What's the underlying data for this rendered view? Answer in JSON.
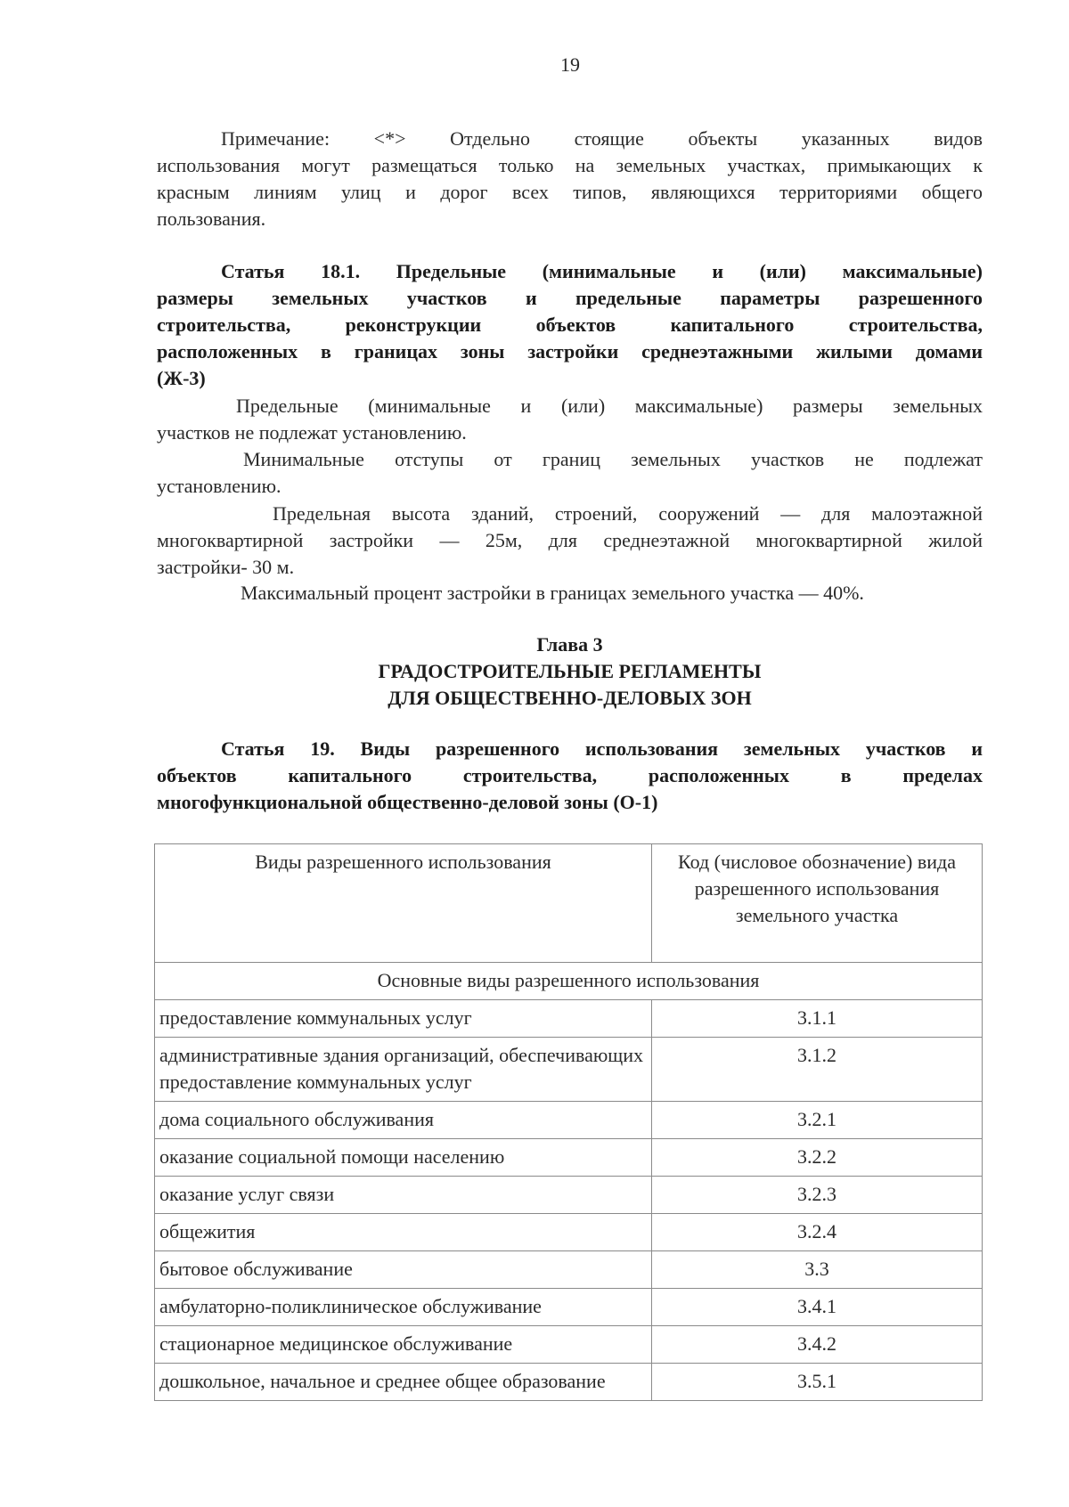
{
  "page_number": "19",
  "note": {
    "lines": [
      "Примечание: <*> Отдельно стоящие объекты указанных видов",
      "использования могут размещаться только на земельных участках, примыкающих к",
      "красным линиям улиц и дорог всех типов, являющихся территориями общего",
      "пользования."
    ]
  },
  "article_18_1": {
    "heading_lines": [
      "Статья 18.1. Предельные (минимальные и (или) максимальные)",
      "размеры земельных участков и предельные параметры разрешенного",
      "строительства, реконструкции объектов капитального строительства,",
      "расположенных в границах зоны застройки среднеэтажными жилыми домами",
      "(Ж-3)"
    ],
    "paragraphs": [
      [
        "Предельные (минимальные и (или) максимальные) размеры земельных",
        "участков не подлежат установлению."
      ],
      [
        "Минимальные отступы от границ земельных участков не подлежат",
        "установлению."
      ],
      [
        "Предельная высота зданий, строений, сооружений — для малоэтажной",
        "многоквартирной застройки — 25м, для среднеэтажной многоквартирной жилой",
        "застройки- 30 м."
      ],
      [
        "Максимальный процент застройки в границах земельного участка — 40%."
      ]
    ]
  },
  "chapter": {
    "number": "Глава 3",
    "title_lines": [
      "ГРАДОСТРОИТЕЛЬНЫЕ РЕГЛАМЕНТЫ",
      "ДЛЯ ОБЩЕСТВЕННО-ДЕЛОВЫХ ЗОН"
    ]
  },
  "article_19": {
    "heading_lines": [
      "Статья 19. Виды разрешенного использования земельных участков и",
      "объектов капитального строительства, расположенных в пределах",
      "многофункциональной общественно-деловой зоны (О-1)"
    ]
  },
  "table": {
    "headers": [
      "Виды разрешенного использования",
      "Код (числовое обозначение) вида разрешенного использования земельного участка"
    ],
    "section": "Основные виды разрешенного использования",
    "rows": [
      {
        "use": "предоставление коммунальных услуг",
        "code": "3.1.1"
      },
      {
        "use": "административные здания организаций, обеспечивающих предоставление коммунальных услуг",
        "code": "3.1.2"
      },
      {
        "use": "дома социального обслуживания",
        "code": "3.2.1"
      },
      {
        "use": "оказание социальной помощи населению",
        "code": "3.2.2"
      },
      {
        "use": "оказание услуг связи",
        "code": "3.2.3"
      },
      {
        "use": "общежития",
        "code": "3.2.4"
      },
      {
        "use": "бытовое обслуживание",
        "code": "3.3"
      },
      {
        "use": "амбулаторно-поликлиническое обслуживание",
        "code": "3.4.1"
      },
      {
        "use": "стационарное медицинское обслуживание",
        "code": "3.4.2"
      },
      {
        "use": "дошкольное, начальное и среднее общее образование",
        "code": "3.5.1"
      }
    ]
  }
}
